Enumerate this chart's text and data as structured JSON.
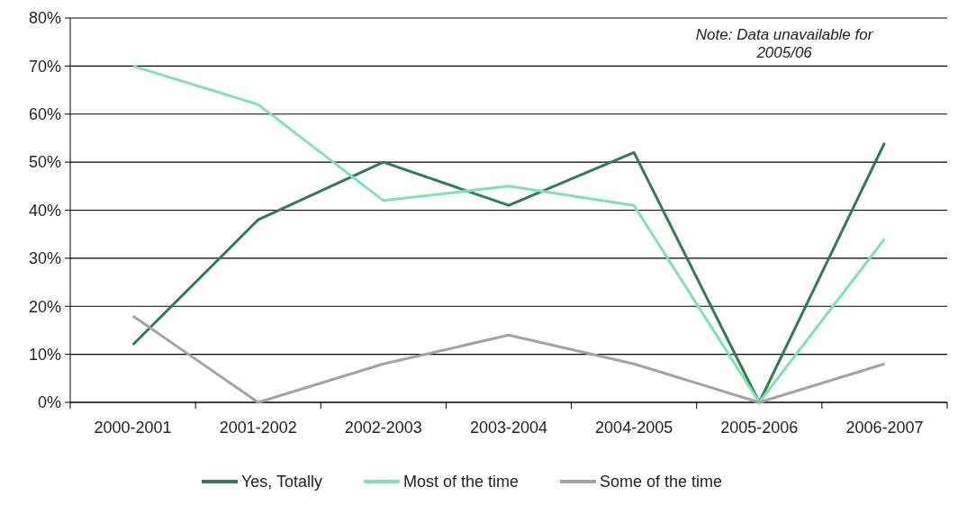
{
  "chart_data": {
    "type": "line",
    "categories": [
      "2000-2001",
      "2001-2002",
      "2002-2003",
      "2003-2004",
      "2004-2005",
      "2005-2006",
      "2006-2007"
    ],
    "series": [
      {
        "name": "Yes, Totally",
        "color": "#2e7d52",
        "values": [
          12,
          38,
          50,
          41,
          52,
          0,
          54
        ]
      },
      {
        "name": "Most of the time",
        "color": "#80e2b4",
        "values": [
          70,
          62,
          42,
          45,
          41,
          0,
          34
        ]
      },
      {
        "name": "Some of the time",
        "color": "#a3a3a3",
        "values": [
          18,
          0,
          8,
          14,
          8,
          0,
          8
        ]
      }
    ],
    "ylim": [
      0,
      80
    ],
    "yticks": [
      {
        "value": 0,
        "label": "0%"
      },
      {
        "value": 10,
        "label": "10%"
      },
      {
        "value": 20,
        "label": "20%"
      },
      {
        "value": 30,
        "label": "30%"
      },
      {
        "value": 40,
        "label": "40%"
      },
      {
        "value": 50,
        "label": "50%"
      },
      {
        "value": 60,
        "label": "60%"
      },
      {
        "value": 70,
        "label": "70%"
      },
      {
        "value": 80,
        "label": "80%"
      }
    ],
    "grid": "y",
    "legend": "bottom",
    "marker": "none",
    "line_style": "solid",
    "annotations": [
      "Note: Data unavailable for 2005/06"
    ]
  }
}
